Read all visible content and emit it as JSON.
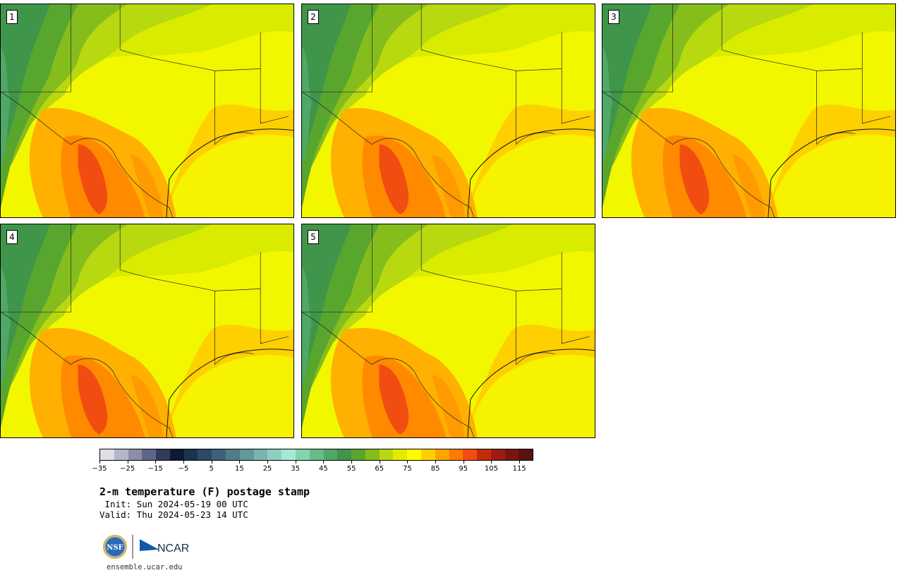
{
  "figure": {
    "title": "2-m temperature (F) postage stamp",
    "init": " Init: Sun 2024-05-19 00 UTC",
    "valid": "Valid: Thu 2024-05-23 14 UTC",
    "url": "ensemble.ucar.edu",
    "logos": {
      "nsf": "NSF",
      "ncar": "NCAR"
    }
  },
  "members": [
    {
      "label": "1"
    },
    {
      "label": "2"
    },
    {
      "label": "3"
    },
    {
      "label": "4"
    },
    {
      "label": "5"
    }
  ],
  "colorbar": {
    "min": -35,
    "max": 120,
    "step": 5,
    "tick_labels": [
      "−35",
      "−25",
      "−15",
      "−5",
      "5",
      "15",
      "25",
      "35",
      "45",
      "55",
      "65",
      "75",
      "85",
      "95",
      "105",
      "115"
    ],
    "colors": [
      "#dcdfe6",
      "#b4b6c8",
      "#8a8ea8",
      "#5f6586",
      "#323a5c",
      "#0d1a33",
      "#1c3350",
      "#2b4a66",
      "#3c6178",
      "#4f7d87",
      "#62989c",
      "#79b4b0",
      "#8fcfc3",
      "#a3ead4",
      "#82d4ad",
      "#66bc86",
      "#50a867",
      "#3f964a",
      "#59a62e",
      "#85bd1c",
      "#b8d80f",
      "#e0ec00",
      "#fffb00",
      "#ffd000",
      "#ffa400",
      "#ff7a00",
      "#f24d10",
      "#c22c0a",
      "#9c1d10",
      "#7a1410",
      "#5a120e"
    ]
  }
}
